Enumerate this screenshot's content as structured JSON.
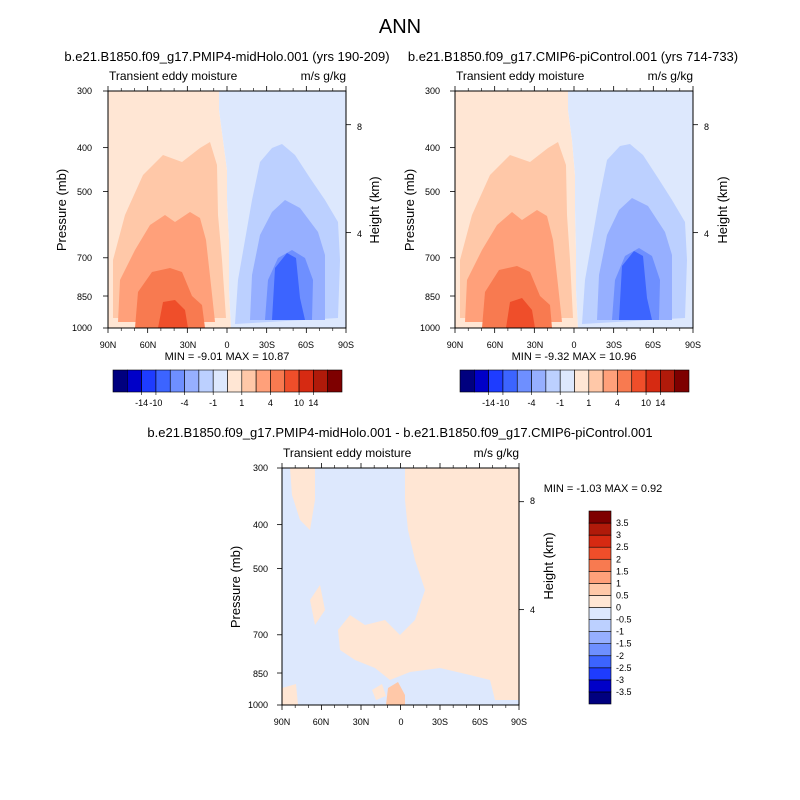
{
  "figure": {
    "title": "ANN"
  },
  "colorbar_main": {
    "colors": [
      "#00007f",
      "#0000c8",
      "#1e3cff",
      "#3c64ff",
      "#6e8fff",
      "#96afff",
      "#bcd0ff",
      "#dde8fd",
      "#ffe6d4",
      "#ffc8a8",
      "#ffa07a",
      "#f87a50",
      "#ef4e2a",
      "#d62a12",
      "#b01a0a",
      "#7e0000"
    ],
    "labels": [
      "-14",
      "-10",
      "-4",
      "-1",
      "1",
      "4",
      "10",
      "14"
    ]
  },
  "colorbar_diff": {
    "colors": [
      "#00007f",
      "#0000c8",
      "#1e3cff",
      "#3c64ff",
      "#6e8fff",
      "#96afff",
      "#bcd0ff",
      "#dde8fd",
      "#ffe6d4",
      "#ffc8a8",
      "#ffa07a",
      "#f87a50",
      "#ef4e2a",
      "#d62a12",
      "#b01a0a",
      "#7e0000"
    ],
    "labels": [
      "-3.5",
      "-3",
      "-2.5",
      "-2",
      "-1.5",
      "-1",
      "-0.5",
      "0",
      "0.5",
      "1",
      "1.5",
      "2",
      "2.5",
      "3",
      "3.5"
    ]
  },
  "chart_data": [
    {
      "type": "heatmap",
      "title": "b.e21.B1850.f09_g17.PMIP4-midHolo.001 (yrs 190-209)",
      "left_string": "Transient eddy moisture",
      "right_string": "m/s g/kg",
      "xlabel": "",
      "ylabel": "Pressure (mb)",
      "y2label": "Height (km)",
      "x_ticks": [
        "90N",
        "60N",
        "30N",
        "0",
        "30S",
        "60S",
        "90S"
      ],
      "y_ticks": [
        "300",
        "400",
        "500",
        "700",
        "850",
        "1000"
      ],
      "y2_ticks": [
        "8",
        "4"
      ],
      "ylim": [
        1000,
        300
      ],
      "min_max_text": "MIN =  -9.01   MAX =  10.87",
      "min": -9.01,
      "max": 10.87
    },
    {
      "type": "heatmap",
      "title": "b.e21.B1850.f09_g17.CMIP6-piControl.001 (yrs 714-733)",
      "left_string": "Transient eddy moisture",
      "right_string": "m/s g/kg",
      "xlabel": "",
      "ylabel": "Pressure (mb)",
      "y2label": "Height (km)",
      "x_ticks": [
        "90N",
        "60N",
        "30N",
        "0",
        "30S",
        "60S",
        "90S"
      ],
      "y_ticks": [
        "300",
        "400",
        "500",
        "700",
        "850",
        "1000"
      ],
      "y2_ticks": [
        "8",
        "4"
      ],
      "ylim": [
        1000,
        300
      ],
      "min_max_text": "MIN =  -9.32   MAX =  10.96",
      "min": -9.32,
      "max": 10.96
    },
    {
      "type": "heatmap",
      "title": "b.e21.B1850.f09_g17.PMIP4-midHolo.001 - b.e21.B1850.f09_g17.CMIP6-piControl.001",
      "left_string": "Transient eddy moisture",
      "right_string": "m/s g/kg",
      "xlabel": "",
      "ylabel": "Pressure (mb)",
      "y2label": "Height (km)",
      "x_ticks": [
        "90N",
        "60N",
        "30N",
        "0",
        "30S",
        "60S",
        "90S"
      ],
      "y_ticks": [
        "300",
        "400",
        "500",
        "700",
        "850",
        "1000"
      ],
      "y2_ticks": [
        "8",
        "4"
      ],
      "ylim": [
        1000,
        300
      ],
      "min_max_text": "MIN =  -1.03   MAX =   0.92",
      "min": -1.03,
      "max": 0.92
    }
  ]
}
